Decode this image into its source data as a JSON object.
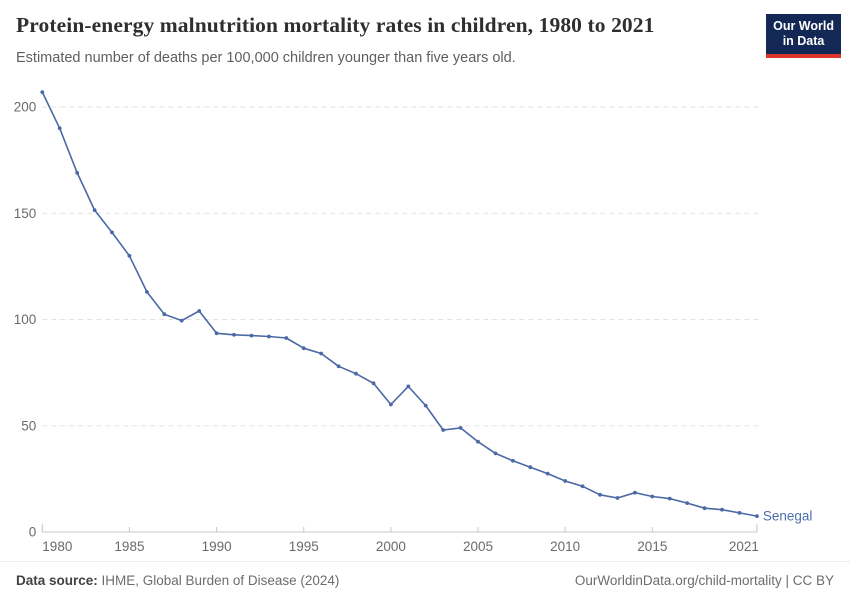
{
  "header": {
    "title": "Protein-energy malnutrition mortality rates in children, 1980 to 2021",
    "subtitle": "Estimated number of deaths per 100,000 children younger than five years old.",
    "logo": {
      "line1": "Our World",
      "line2": "in Data"
    }
  },
  "chart_data": {
    "type": "line",
    "title": "Protein-energy malnutrition mortality rates in children, 1980 to 2021",
    "xlabel": "",
    "ylabel": "Estimated number of deaths per 100,000 children younger than five years old",
    "xlim": [
      1980,
      2021
    ],
    "ylim": [
      0,
      210
    ],
    "grid": "horizontal-dashed",
    "legend_position": "end-of-line-label",
    "x_ticks": [
      1980,
      1985,
      1990,
      1995,
      2000,
      2005,
      2010,
      2015,
      2021
    ],
    "y_ticks": [
      0,
      50,
      100,
      150,
      200
    ],
    "x": [
      1980,
      1981,
      1982,
      1983,
      1984,
      1985,
      1986,
      1987,
      1988,
      1989,
      1990,
      1991,
      1992,
      1993,
      1994,
      1995,
      1996,
      1997,
      1998,
      1999,
      2000,
      2001,
      2002,
      2003,
      2004,
      2005,
      2006,
      2007,
      2008,
      2009,
      2010,
      2011,
      2012,
      2013,
      2014,
      2015,
      2016,
      2017,
      2018,
      2019,
      2020,
      2021
    ],
    "series": [
      {
        "name": "Senegal",
        "color": "#4b69a5",
        "values": [
          207,
          190,
          169,
          151.5,
          141,
          130,
          113,
          102.5,
          99.5,
          104,
          93.5,
          92.8,
          92.4,
          92,
          91.3,
          86.5,
          84,
          78,
          74.5,
          70,
          60,
          68.5,
          59.5,
          48,
          49,
          42.5,
          37,
          33.5,
          30.5,
          27.5,
          24,
          21.5,
          17.5,
          16,
          18.5,
          16.7,
          15.7,
          13.6,
          11.2,
          10.5,
          9,
          7.5
        ]
      }
    ]
  },
  "entity_label": "Senegal",
  "footer": {
    "datasource_label": "Data source:",
    "datasource_text": " IHME, Global Burden of Disease (2024)",
    "license_text": "OurWorldinData.org/child-mortality | CC BY"
  },
  "colors": {
    "line": "#4b69a5",
    "entity_label": "#4d6fab",
    "gridline": "#e3e3e3",
    "axis": "#c9c9c9",
    "tick_label": "#6b6b6b",
    "logo_bg": "#142855",
    "logo_accent": "#dc352c"
  }
}
